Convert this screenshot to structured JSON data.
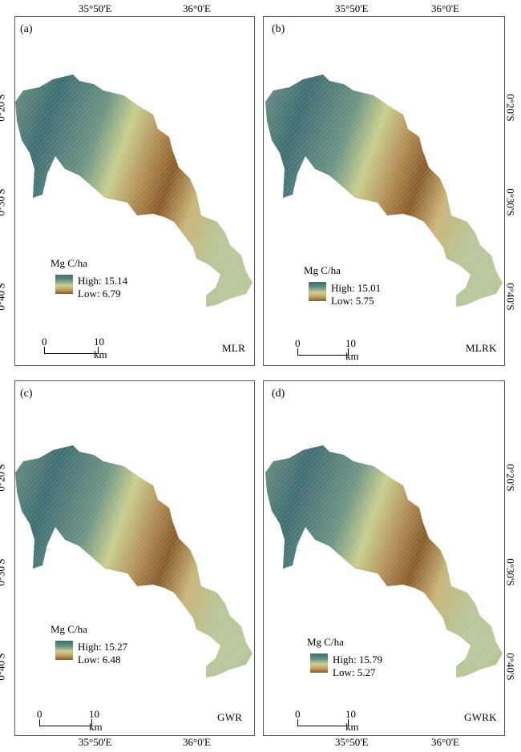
{
  "top_lon_labels": [
    "35°50'E",
    "36°0'E",
    "35°50'E",
    "36°0'E"
  ],
  "bottom_lon_labels": [
    "35°50'E",
    "36°0'E",
    "35°50'E",
    "36°0'E"
  ],
  "lat_labels": [
    "0°20'S",
    "0°30'S",
    "0°40'S"
  ],
  "colors": {
    "high": "#3f6e73",
    "mid": "#c9cf8f",
    "low": "#8a5c2a",
    "frame": "#555555"
  },
  "panels": [
    {
      "label": "(a)",
      "method": "MLR",
      "legend_title": "Mg C/ha",
      "high": "High:  15.14",
      "low": "Low:   6.79",
      "scale_zero": "0",
      "scale_end": "10 km"
    },
    {
      "label": "(b)",
      "method": "MLRK",
      "legend_title": "Mg C/ha",
      "high": "High:  15.01",
      "low": "Low:   5.75",
      "scale_zero": "0",
      "scale_end": "10 km"
    },
    {
      "label": "(c)",
      "method": "GWR",
      "legend_title": "Mg C/ha",
      "high": "High:  15.27",
      "low": "Low:   6.48",
      "scale_zero": "0",
      "scale_end": "10 km"
    },
    {
      "label": "(d)",
      "method": "GWRK",
      "legend_title": "Mg C/ha",
      "high": "High:  15.79",
      "low": "Low:   5.27",
      "scale_zero": "0",
      "scale_end": "10 km"
    }
  ]
}
